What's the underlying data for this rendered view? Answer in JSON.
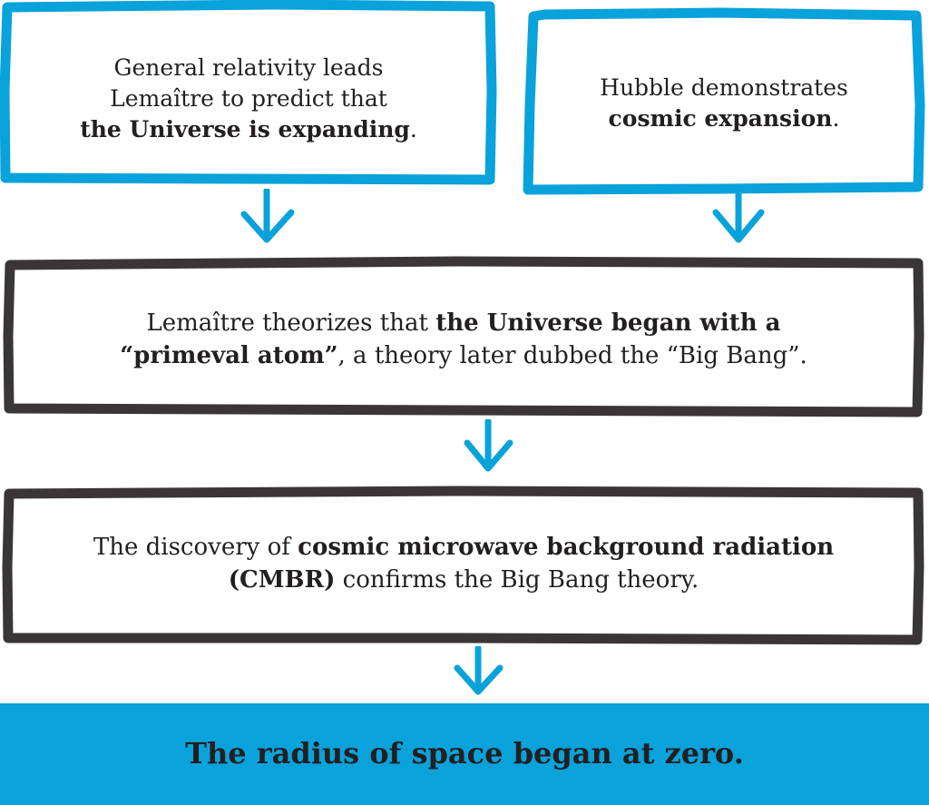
{
  "boxes": {
    "relativity": {
      "line1": "General relativity leads",
      "line2": "Lemaître to predict that",
      "bold": "the Universe is expanding",
      "after": "."
    },
    "hubble": {
      "line1": "Hubble demonstrates",
      "bold": "cosmic expansion",
      "after": "."
    },
    "primeval": {
      "pre1": "Lemaître theorizes that ",
      "bold1": "the Universe began with a",
      "bold2": "“primeval atom”",
      "post2": ", a theory later dubbed the “Big Bang”."
    },
    "cmbr": {
      "pre1": "The discovery of ",
      "bold1": "cosmic microwave background radiation",
      "bold2": "(CMBR)",
      "post2": " confirms the Big Bang theory."
    }
  },
  "conclusion": "The radius of space began at zero.",
  "colors": {
    "blue": "#0aa2da",
    "dark": "#3a3637",
    "text": "#231f20",
    "background": "#ffffff"
  }
}
